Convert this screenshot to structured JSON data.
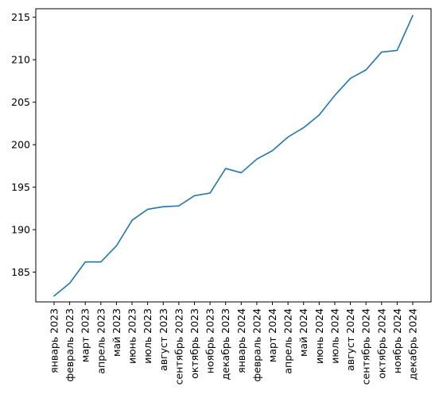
{
  "chart_data": {
    "type": "line",
    "title": "",
    "xlabel": "",
    "ylabel": "",
    "categories": [
      "январь 2023",
      "февраль 2023",
      "март 2023",
      "апрель 2023",
      "май 2023",
      "июнь 2023",
      "июль 2023",
      "август 2023",
      "сентябрь 2023",
      "октябрь 2023",
      "ноябрь 2023",
      "декабрь 2023",
      "январь 2024",
      "февраль 2024",
      "март 2024",
      "апрель 2024",
      "май 2024",
      "июнь 2024",
      "июль 2024",
      "август 2024",
      "сентябрь 2024",
      "октябрь 2024",
      "ноябрь 2024",
      "декабрь 2024"
    ],
    "series": [
      {
        "color": "#1f77b4",
        "values": [
          182.2,
          183.7,
          186.2,
          186.2,
          188.1,
          191.1,
          192.4,
          192.7,
          192.8,
          194.0,
          194.3,
          197.2,
          196.7,
          198.3,
          199.3,
          200.9,
          202.0,
          203.5,
          205.8,
          207.8,
          208.8,
          210.9,
          211.1,
          215.2
        ]
      }
    ],
    "yticks": [
      185,
      190,
      195,
      200,
      205,
      210,
      215
    ],
    "ylim": [
      181.5,
      216.0
    ],
    "grid": false,
    "legend": "none"
  }
}
